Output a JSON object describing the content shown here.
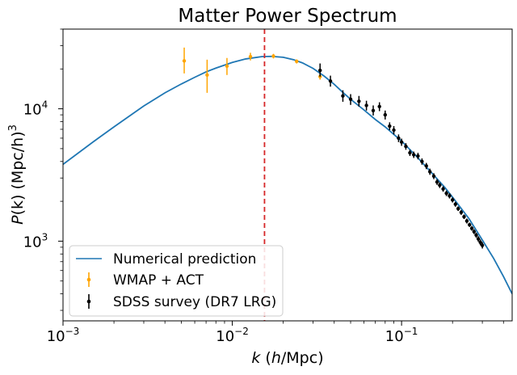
{
  "chart_data": {
    "type": "scatter",
    "title": "Matter Power Spectrum",
    "xlabel_parts": {
      "var": "k",
      "open": " (",
      "h": "h",
      "unit": "/Mpc)"
    },
    "ylabel_parts": {
      "P": "P",
      "k": "(k)",
      "unit": " (Mpc/h)",
      "exp": "3"
    },
    "x_scale": "log",
    "y_scale": "log",
    "xlim": [
      0.001,
      0.45
    ],
    "ylim": [
      250,
      40000
    ],
    "x_ticks": [
      {
        "value": 0.001,
        "base": "10",
        "exp": "−3"
      },
      {
        "value": 0.01,
        "base": "10",
        "exp": "−2"
      },
      {
        "value": 0.1,
        "base": "10",
        "exp": "−1"
      }
    ],
    "y_ticks": [
      {
        "value": 1000,
        "base": "10",
        "exp": "3"
      },
      {
        "value": 10000,
        "base": "10",
        "exp": "4"
      }
    ],
    "grid": false,
    "legend_position": "lower-left",
    "reference_line": {
      "x": 0.0155,
      "color": "#d62728",
      "style": "dashed"
    },
    "series": [
      {
        "name": "Numerical prediction",
        "kind": "line",
        "color": "#1f77b4",
        "x": [
          0.001,
          0.0015,
          0.002,
          0.003,
          0.004,
          0.005,
          0.006,
          0.007,
          0.008,
          0.01,
          0.012,
          0.015,
          0.017,
          0.02,
          0.023,
          0.026,
          0.03,
          0.035,
          0.04,
          0.045,
          0.05,
          0.06,
          0.07,
          0.08,
          0.09,
          0.1,
          0.12,
          0.15,
          0.18,
          0.2,
          0.25,
          0.3,
          0.35,
          0.4,
          0.45
        ],
        "y": [
          3800,
          5600,
          7300,
          10500,
          13200,
          15400,
          17300,
          19000,
          20300,
          22400,
          23800,
          24800,
          24900,
          24500,
          23500,
          22200,
          20200,
          17600,
          15300,
          13300,
          11800,
          9800,
          8300,
          7300,
          6400,
          5700,
          4500,
          3300,
          2550,
          2150,
          1480,
          1020,
          740,
          540,
          400
        ]
      },
      {
        "name": "WMAP + ACT",
        "kind": "errorbar",
        "color": "#ffa500",
        "points": [
          {
            "x": 0.0052,
            "y": 23000,
            "lo": 18500,
            "hi": 29000
          },
          {
            "x": 0.0071,
            "y": 18000,
            "lo": 13200,
            "hi": 23500
          },
          {
            "x": 0.0093,
            "y": 21000,
            "lo": 18000,
            "hi": 24200
          },
          {
            "x": 0.0128,
            "y": 24800,
            "lo": 23200,
            "hi": 26500
          },
          {
            "x": 0.0175,
            "y": 25000,
            "lo": 24000,
            "hi": 26000
          },
          {
            "x": 0.024,
            "y": 22800,
            "lo": 22000,
            "hi": 23600
          },
          {
            "x": 0.033,
            "y": 17500,
            "lo": 16600,
            "hi": 18400
          }
        ]
      },
      {
        "name": "SDSS survey (DR7 LRG)",
        "kind": "errorbar",
        "color": "#000000",
        "points": [
          {
            "x": 0.033,
            "y": 19500,
            "lo": 17500,
            "hi": 22000
          },
          {
            "x": 0.038,
            "y": 16200,
            "lo": 14700,
            "hi": 17800
          },
          {
            "x": 0.045,
            "y": 12500,
            "lo": 11300,
            "hi": 13800
          },
          {
            "x": 0.05,
            "y": 11800,
            "lo": 10700,
            "hi": 12900
          },
          {
            "x": 0.056,
            "y": 11400,
            "lo": 10400,
            "hi": 12500
          },
          {
            "x": 0.062,
            "y": 10600,
            "lo": 9700,
            "hi": 11500
          },
          {
            "x": 0.068,
            "y": 9700,
            "lo": 8900,
            "hi": 10600
          },
          {
            "x": 0.074,
            "y": 10400,
            "lo": 9600,
            "hi": 11200
          },
          {
            "x": 0.08,
            "y": 9000,
            "lo": 8300,
            "hi": 9700
          },
          {
            "x": 0.085,
            "y": 7400,
            "lo": 6900,
            "hi": 7900
          },
          {
            "x": 0.09,
            "y": 6900,
            "lo": 6400,
            "hi": 7400
          },
          {
            "x": 0.096,
            "y": 6000,
            "lo": 5600,
            "hi": 6400
          },
          {
            "x": 0.1,
            "y": 5600,
            "lo": 5250,
            "hi": 5950
          },
          {
            "x": 0.106,
            "y": 5200,
            "lo": 4900,
            "hi": 5500
          },
          {
            "x": 0.112,
            "y": 4650,
            "lo": 4400,
            "hi": 4900
          },
          {
            "x": 0.118,
            "y": 4500,
            "lo": 4250,
            "hi": 4750
          },
          {
            "x": 0.125,
            "y": 4400,
            "lo": 4150,
            "hi": 4650
          },
          {
            "x": 0.132,
            "y": 4000,
            "lo": 3780,
            "hi": 4220
          },
          {
            "x": 0.14,
            "y": 3700,
            "lo": 3500,
            "hi": 3900
          },
          {
            "x": 0.147,
            "y": 3350,
            "lo": 3170,
            "hi": 3530
          },
          {
            "x": 0.155,
            "y": 3100,
            "lo": 2940,
            "hi": 3260
          },
          {
            "x": 0.162,
            "y": 2800,
            "lo": 2660,
            "hi": 2940
          },
          {
            "x": 0.168,
            "y": 2650,
            "lo": 2520,
            "hi": 2780
          },
          {
            "x": 0.176,
            "y": 2480,
            "lo": 2360,
            "hi": 2600
          },
          {
            "x": 0.184,
            "y": 2300,
            "lo": 2190,
            "hi": 2410
          },
          {
            "x": 0.192,
            "y": 2200,
            "lo": 2100,
            "hi": 2300
          },
          {
            "x": 0.2,
            "y": 2050,
            "lo": 1960,
            "hi": 2140
          },
          {
            "x": 0.208,
            "y": 1900,
            "lo": 1820,
            "hi": 1980
          },
          {
            "x": 0.216,
            "y": 1760,
            "lo": 1690,
            "hi": 1830
          },
          {
            "x": 0.225,
            "y": 1650,
            "lo": 1580,
            "hi": 1720
          },
          {
            "x": 0.234,
            "y": 1530,
            "lo": 1470,
            "hi": 1590
          },
          {
            "x": 0.243,
            "y": 1420,
            "lo": 1360,
            "hi": 1480
          },
          {
            "x": 0.252,
            "y": 1330,
            "lo": 1280,
            "hi": 1380
          },
          {
            "x": 0.26,
            "y": 1250,
            "lo": 1200,
            "hi": 1300
          },
          {
            "x": 0.268,
            "y": 1180,
            "lo": 1130,
            "hi": 1230
          },
          {
            "x": 0.276,
            "y": 1110,
            "lo": 1060,
            "hi": 1160
          },
          {
            "x": 0.284,
            "y": 1040,
            "lo": 990,
            "hi": 1090
          },
          {
            "x": 0.292,
            "y": 980,
            "lo": 930,
            "hi": 1030
          },
          {
            "x": 0.3,
            "y": 930,
            "lo": 880,
            "hi": 980
          }
        ]
      }
    ]
  }
}
